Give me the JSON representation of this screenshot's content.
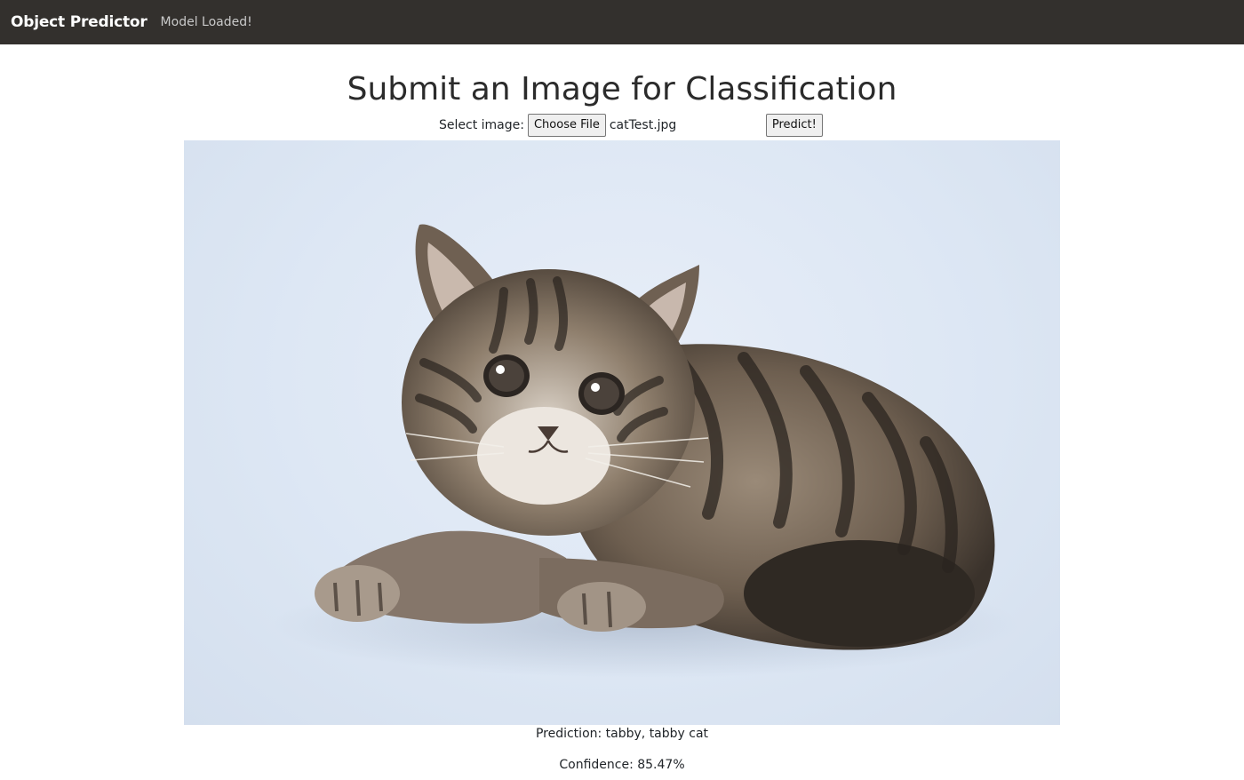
{
  "navbar": {
    "brand": "Object Predictor",
    "status": "Model Loaded!"
  },
  "main": {
    "title": "Submit an Image for Classification",
    "file_label": "Select image:",
    "choose_file_label": "Choose File",
    "file_name": "catTest.jpg",
    "predict_label": "Predict!",
    "image_subject": "tabby kitten photo",
    "prediction": "Prediction: tabby, tabby cat",
    "confidence": "Confidence: 85.47%"
  },
  "colors": {
    "navbar_bg": "#33302d",
    "photo_bg": "#dde7f4"
  }
}
